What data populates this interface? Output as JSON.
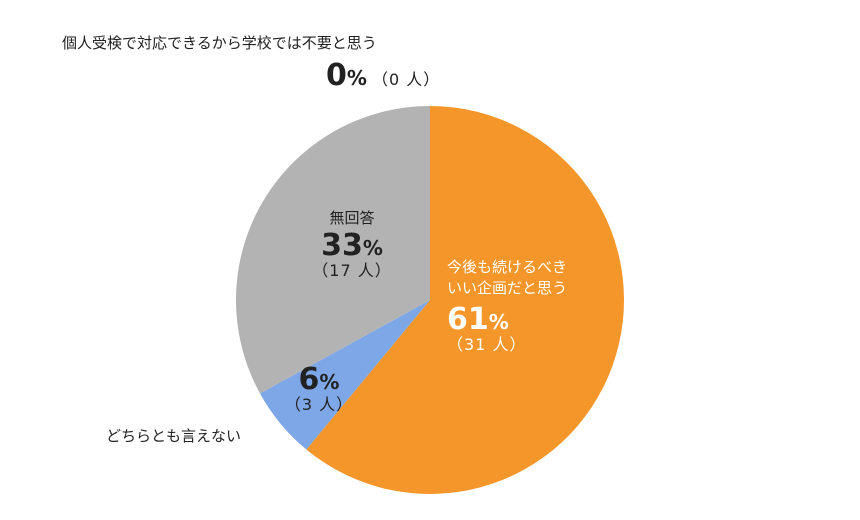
{
  "chart_data": {
    "type": "pie",
    "title": "",
    "start_angle_deg": 0,
    "direction": "clockwise",
    "slices": [
      {
        "label": "今後も続けるべきいい企画だと思う",
        "label_lines": [
          "今後も続けるべき",
          "いい企画だと思う"
        ],
        "percent": 61,
        "percent_text": "61",
        "count_text": "（31 人）",
        "color": "#f5962a"
      },
      {
        "label": "どちらとも言えない",
        "percent": 6,
        "percent_text": "6",
        "count_text": "（3 人）",
        "color": "#7da7e6"
      },
      {
        "label": "無回答",
        "percent": 33,
        "percent_text": "33",
        "count_text": "（17 人）",
        "color": "#b3b3b3"
      },
      {
        "label": "個人受検で対応できるから学校では不要と思う",
        "percent": 0,
        "percent_text": "0",
        "count_text": "（0 人）",
        "color": "#ffffff"
      }
    ],
    "percent_sign": "%"
  }
}
